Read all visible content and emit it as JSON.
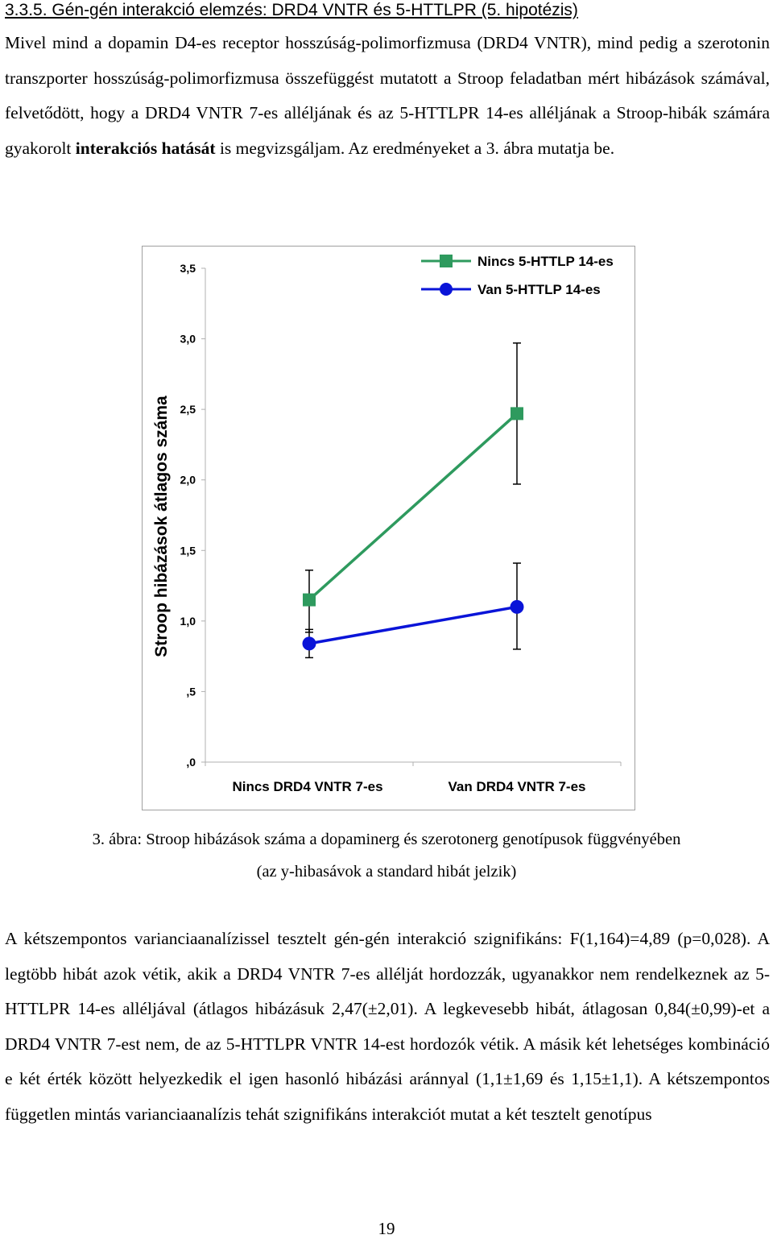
{
  "heading": "3.3.5. Gén-gén interakció elemzés: DRD4 VNTR és 5-HTTLPR (5. hipotézis)",
  "para1": {
    "before_bold": "Mivel mind a dopamin D4-es receptor hosszúság-polimorfizmusa (DRD4 VNTR), mind pedig a szerotonin transzporter hosszúság-polimorfizmusa összefüggést mutatott a Stroop feladatban mért hibázások számával, felvetődött, hogy a DRD4 VNTR 7-es alléljának és az 5-HTTLPR 14-es alléljának a Stroop-hibák számára gyakorolt ",
    "bold": "interakciós hatását",
    "after_bold": " is megvizsgáljam. Az eredményeket a 3. ábra mutatja be."
  },
  "chart_data": {
    "type": "line",
    "ylabel": "Stroop hibázások átlagos száma",
    "xlabel": "",
    "categories": [
      "Nincs DRD4 VNTR 7-es",
      "Van DRD4 VNTR 7-es"
    ],
    "ylim": [
      0,
      3.5
    ],
    "yticks": [
      0,
      0.5,
      1.0,
      1.5,
      2.0,
      2.5,
      3.0,
      3.5
    ],
    "ytick_labels": [
      ",0",
      ",5",
      "1,0",
      "1,5",
      "2,0",
      "2,5",
      "3,0",
      "3,5"
    ],
    "legend_position": "top-right",
    "grid": false,
    "series": [
      {
        "name": "Nincs 5-HTTLP 14-es",
        "color": "#2e9a5e",
        "marker": "square",
        "values": [
          1.15,
          2.47
        ],
        "err_low": [
          0.92,
          1.97
        ],
        "err_high": [
          1.36,
          2.97
        ]
      },
      {
        "name": "Van 5-HTTLP 14-es",
        "color": "#0a14d8",
        "marker": "circle",
        "values": [
          0.84,
          1.1
        ],
        "err_low": [
          0.74,
          0.8
        ],
        "err_high": [
          0.94,
          1.41
        ]
      }
    ]
  },
  "caption": {
    "line1": "3. ábra: Stroop hibázások száma a dopaminerg és szerotonerg genotípusok függvényében",
    "line2": "(az y-hibasávok a standard hibát jelzik)"
  },
  "para2": "A kétszempontos varianciaanalízissel tesztelt gén-gén interakció szignifikáns: F(1,164)=4,89 (p=0,028). A legtöbb hibát azok vétik, akik a DRD4 VNTR 7-es allélját hordozzák, ugyanakkor nem rendelkeznek az 5-HTTLPR 14-es alléljával (átlagos hibázásuk 2,47(±2,01). A legkevesebb hibát, átlagosan 0,84(±0,99)-et a DRD4 VNTR 7-est nem, de az 5-HTTLPR VNTR 14-est hordozók vétik. A másik két lehetséges kombináció e két érték között helyezkedik el igen hasonló hibázási aránnyal (1,1±1,69 és 1,15±1,1). A kétszempontos független mintás varianciaanalízis tehát szignifikáns interakciót mutat a két tesztelt genotípus",
  "page_number": "19"
}
